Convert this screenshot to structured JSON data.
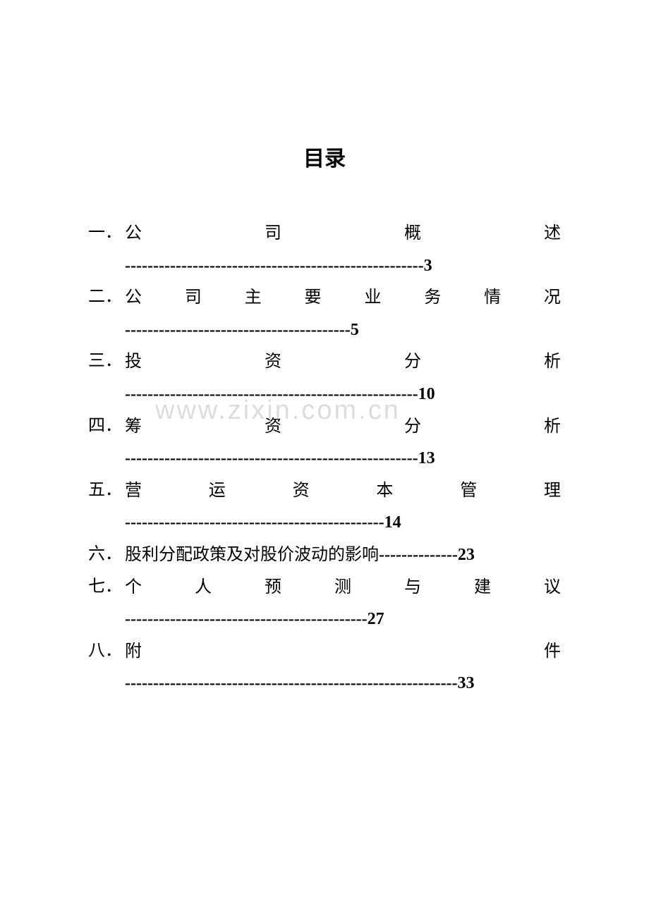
{
  "title": "目录",
  "watermark": "www.zixin.com.cn",
  "items": [
    {
      "number": "一．",
      "title_chars": [
        "公",
        "司",
        "概",
        "述"
      ],
      "dashes": "-----------------------------------------------------3"
    },
    {
      "number": "二．",
      "title_chars": [
        "公",
        "司",
        "主",
        "要",
        "业",
        "务",
        "情",
        "况"
      ],
      "dashes": "----------------------------------------5"
    },
    {
      "number": "三．",
      "title_chars": [
        "投",
        "资",
        "分",
        "析"
      ],
      "dashes": "----------------------------------------------------10"
    },
    {
      "number": "四．",
      "title_chars": [
        "筹",
        "资",
        "分",
        "析"
      ],
      "dashes": "----------------------------------------------------13"
    },
    {
      "number": "五．",
      "title_chars": [
        "营",
        "运",
        "资",
        "本",
        "管",
        "理"
      ],
      "dashes": "----------------------------------------------14"
    },
    {
      "number": "六．",
      "title": "股利分配政策及对股价波动的影响",
      "dashes": "--------------",
      "page": " 23"
    },
    {
      "number": "七．",
      "title_chars": [
        "个",
        "人",
        "预",
        "测",
        "与",
        "建",
        "议"
      ],
      "dashes": "-------------------------------------------27"
    },
    {
      "number": "八．",
      "title_chars": [
        "附",
        "件"
      ],
      "dashes": "-----------------------------------------------------------33"
    }
  ],
  "colors": {
    "text": "#000000",
    "background": "#ffffff",
    "watermark": "#dcdcdc"
  },
  "typography": {
    "title_fontsize": 30,
    "body_fontsize": 24,
    "font_family": "SimSun"
  }
}
